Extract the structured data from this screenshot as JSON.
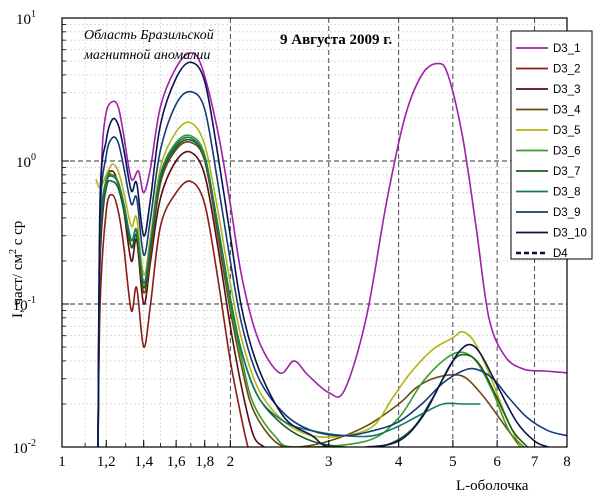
{
  "chart_data": {
    "type": "line",
    "title": "9  Августа 2009 г.",
    "region_label_line1": "Область Бразильской",
    "region_label_line2": "магнитной аномалии",
    "xlabel": "L-оболочка",
    "ylabel": "I, част/ см",
    "ylabel_sup": "2",
    "ylabel_tail": " с ср",
    "x_scale": "log",
    "y_scale": "log",
    "xlim": [
      1,
      8
    ],
    "ylim": [
      0.01,
      10
    ],
    "x_ticks": [
      {
        "value": 1,
        "label": "1"
      },
      {
        "value": 1.2,
        "label": "1,2"
      },
      {
        "value": 1.4,
        "label": "1,4"
      },
      {
        "value": 1.6,
        "label": "1,6"
      },
      {
        "value": 1.8,
        "label": "1,8"
      },
      {
        "value": 2,
        "label": "2"
      },
      {
        "value": 3,
        "label": "3"
      },
      {
        "value": 4,
        "label": "4"
      },
      {
        "value": 5,
        "label": "5"
      },
      {
        "value": 6,
        "label": "6"
      },
      {
        "value": 7,
        "label": "7"
      },
      {
        "value": 8,
        "label": "8"
      }
    ],
    "y_ticks": [
      {
        "value": 0.01,
        "base": "10",
        "exp": "-2"
      },
      {
        "value": 0.1,
        "base": "10",
        "exp": "-1"
      },
      {
        "value": 1,
        "base": "10",
        "exp": "0"
      },
      {
        "value": 10,
        "base": "10",
        "exp": "1"
      }
    ],
    "dashed_x_lines": [
      2,
      3,
      4,
      5,
      6,
      7
    ],
    "dashed_y_lines": [
      0.1,
      1
    ],
    "grid": true,
    "legend_position": "top-right",
    "series": [
      {
        "name": "D3_1",
        "color": "#a020a8",
        "dash": false,
        "points": [
          [
            1.16,
            0.01
          ],
          [
            1.17,
            0.3
          ],
          [
            1.18,
            1.2
          ],
          [
            1.2,
            2.2
          ],
          [
            1.23,
            2.6
          ],
          [
            1.26,
            2.4
          ],
          [
            1.29,
            1.5
          ],
          [
            1.33,
            0.75
          ],
          [
            1.37,
            0.85
          ],
          [
            1.4,
            0.6
          ],
          [
            1.44,
            0.9
          ],
          [
            1.5,
            2.4
          ],
          [
            1.6,
            4.5
          ],
          [
            1.7,
            5.7
          ],
          [
            1.78,
            4.5
          ],
          [
            1.9,
            1.6
          ],
          [
            2.0,
            0.5
          ],
          [
            2.1,
            0.15
          ],
          [
            2.25,
            0.055
          ],
          [
            2.45,
            0.033
          ],
          [
            2.6,
            0.04
          ],
          [
            2.75,
            0.032
          ],
          [
            3.0,
            0.024
          ],
          [
            3.2,
            0.025
          ],
          [
            3.5,
            0.08
          ],
          [
            3.8,
            0.5
          ],
          [
            4.1,
            2.0
          ],
          [
            4.4,
            4.0
          ],
          [
            4.7,
            4.8
          ],
          [
            4.9,
            4.0
          ],
          [
            5.2,
            1.5
          ],
          [
            5.5,
            0.35
          ],
          [
            5.8,
            0.08
          ],
          [
            6.2,
            0.043
          ],
          [
            6.7,
            0.035
          ],
          [
            7.3,
            0.034
          ],
          [
            8.0,
            0.033
          ]
        ]
      },
      {
        "name": "D3_2",
        "color": "#8b1a1a",
        "dash": false,
        "points": [
          [
            1.16,
            0.01
          ],
          [
            1.17,
            0.1
          ],
          [
            1.2,
            0.45
          ],
          [
            1.23,
            0.58
          ],
          [
            1.26,
            0.45
          ],
          [
            1.29,
            0.25
          ],
          [
            1.33,
            0.09
          ],
          [
            1.36,
            0.13
          ],
          [
            1.4,
            0.05
          ],
          [
            1.44,
            0.1
          ],
          [
            1.5,
            0.35
          ],
          [
            1.6,
            0.6
          ],
          [
            1.7,
            0.72
          ],
          [
            1.8,
            0.5
          ],
          [
            1.9,
            0.15
          ],
          [
            2.0,
            0.04
          ],
          [
            2.1,
            0.015
          ],
          [
            2.15,
            0.01
          ]
        ]
      },
      {
        "name": "D3_3",
        "color": "#5c0a14",
        "dash": false,
        "points": [
          [
            1.16,
            0.01
          ],
          [
            1.17,
            0.2
          ],
          [
            1.2,
            0.7
          ],
          [
            1.23,
            0.85
          ],
          [
            1.26,
            0.7
          ],
          [
            1.29,
            0.45
          ],
          [
            1.33,
            0.2
          ],
          [
            1.36,
            0.28
          ],
          [
            1.4,
            0.1
          ],
          [
            1.44,
            0.2
          ],
          [
            1.5,
            0.55
          ],
          [
            1.6,
            1.0
          ],
          [
            1.7,
            1.15
          ],
          [
            1.8,
            0.8
          ],
          [
            1.9,
            0.25
          ],
          [
            2.0,
            0.07
          ],
          [
            2.1,
            0.025
          ],
          [
            2.2,
            0.012
          ],
          [
            2.3,
            0.01
          ]
        ]
      },
      {
        "name": "D3_4",
        "color": "#6b4a10",
        "dash": false,
        "points": [
          [
            1.16,
            0.01
          ],
          [
            1.17,
            0.25
          ],
          [
            1.2,
            0.7
          ],
          [
            1.23,
            0.8
          ],
          [
            1.26,
            0.7
          ],
          [
            1.29,
            0.5
          ],
          [
            1.33,
            0.25
          ],
          [
            1.36,
            0.3
          ],
          [
            1.4,
            0.12
          ],
          [
            1.44,
            0.22
          ],
          [
            1.5,
            0.7
          ],
          [
            1.6,
            1.2
          ],
          [
            1.7,
            1.35
          ],
          [
            1.8,
            1.0
          ],
          [
            1.9,
            0.3
          ],
          [
            2.0,
            0.09
          ],
          [
            2.1,
            0.035
          ],
          [
            2.2,
            0.018
          ],
          [
            2.4,
            0.011
          ],
          [
            2.6,
            0.01
          ],
          [
            3.0,
            0.011
          ],
          [
            3.5,
            0.014
          ],
          [
            4.0,
            0.02
          ],
          [
            4.3,
            0.026
          ],
          [
            4.6,
            0.03
          ],
          [
            5.0,
            0.032
          ],
          [
            5.3,
            0.03
          ],
          [
            5.7,
            0.022
          ],
          [
            6.2,
            0.014
          ],
          [
            6.6,
            0.01
          ]
        ]
      },
      {
        "name": "D3_5",
        "color": "#b4b414",
        "dash": false,
        "points": [
          [
            1.15,
            0.75
          ],
          [
            1.17,
            0.65
          ],
          [
            1.2,
            0.8
          ],
          [
            1.23,
            0.95
          ],
          [
            1.26,
            0.85
          ],
          [
            1.29,
            0.6
          ],
          [
            1.33,
            0.35
          ],
          [
            1.36,
            0.4
          ],
          [
            1.4,
            0.16
          ],
          [
            1.44,
            0.3
          ],
          [
            1.5,
            0.9
          ],
          [
            1.6,
            1.6
          ],
          [
            1.7,
            1.85
          ],
          [
            1.8,
            1.3
          ],
          [
            1.9,
            0.45
          ],
          [
            2.0,
            0.14
          ],
          [
            2.1,
            0.055
          ],
          [
            2.25,
            0.025
          ],
          [
            2.5,
            0.015
          ],
          [
            2.8,
            0.012
          ],
          [
            3.2,
            0.012
          ],
          [
            3.6,
            0.014
          ],
          [
            3.9,
            0.022
          ],
          [
            4.2,
            0.033
          ],
          [
            4.6,
            0.048
          ],
          [
            5.0,
            0.058
          ],
          [
            5.2,
            0.064
          ],
          [
            5.45,
            0.055
          ],
          [
            5.8,
            0.033
          ],
          [
            6.2,
            0.017
          ],
          [
            6.6,
            0.01
          ]
        ]
      },
      {
        "name": "D3_6",
        "color": "#3c9b2a",
        "dash": false,
        "points": [
          [
            1.16,
            0.01
          ],
          [
            1.17,
            0.3
          ],
          [
            1.2,
            0.75
          ],
          [
            1.23,
            0.8
          ],
          [
            1.26,
            0.72
          ],
          [
            1.29,
            0.5
          ],
          [
            1.33,
            0.28
          ],
          [
            1.36,
            0.33
          ],
          [
            1.4,
            0.14
          ],
          [
            1.44,
            0.26
          ],
          [
            1.5,
            0.8
          ],
          [
            1.6,
            1.35
          ],
          [
            1.7,
            1.5
          ],
          [
            1.8,
            1.1
          ],
          [
            1.9,
            0.35
          ],
          [
            2.0,
            0.1
          ],
          [
            2.1,
            0.04
          ],
          [
            2.2,
            0.02
          ],
          [
            2.4,
            0.012
          ],
          [
            2.6,
            0.01
          ],
          [
            3.5,
            0.011
          ],
          [
            4.0,
            0.016
          ],
          [
            4.4,
            0.028
          ],
          [
            4.8,
            0.04
          ],
          [
            5.15,
            0.046
          ],
          [
            5.5,
            0.04
          ],
          [
            5.9,
            0.024
          ],
          [
            6.3,
            0.013
          ],
          [
            6.7,
            0.01
          ]
        ]
      },
      {
        "name": "D3_7",
        "color": "#1e5a1e",
        "dash": false,
        "points": [
          [
            1.16,
            0.01
          ],
          [
            1.17,
            0.25
          ],
          [
            1.2,
            0.65
          ],
          [
            1.23,
            0.72
          ],
          [
            1.26,
            0.65
          ],
          [
            1.29,
            0.45
          ],
          [
            1.33,
            0.25
          ],
          [
            1.36,
            0.3
          ],
          [
            1.4,
            0.13
          ],
          [
            1.44,
            0.25
          ],
          [
            1.5,
            0.75
          ],
          [
            1.6,
            1.25
          ],
          [
            1.7,
            1.4
          ],
          [
            1.8,
            1.05
          ],
          [
            1.9,
            0.35
          ],
          [
            2.0,
            0.11
          ],
          [
            2.1,
            0.045
          ],
          [
            2.25,
            0.022
          ],
          [
            2.5,
            0.014
          ],
          [
            2.8,
            0.011
          ],
          [
            3.2,
            0.01
          ],
          [
            3.7,
            0.01
          ],
          [
            4.2,
            0.013
          ],
          [
            4.6,
            0.022
          ],
          [
            5.0,
            0.04
          ],
          [
            5.3,
            0.044
          ],
          [
            5.6,
            0.037
          ],
          [
            6.0,
            0.022
          ],
          [
            6.4,
            0.013
          ],
          [
            6.8,
            0.01
          ]
        ]
      },
      {
        "name": "D3_8",
        "color": "#147864",
        "dash": false,
        "points": [
          [
            1.16,
            0.01
          ],
          [
            1.17,
            0.3
          ],
          [
            1.2,
            0.7
          ],
          [
            1.23,
            0.78
          ],
          [
            1.26,
            0.7
          ],
          [
            1.29,
            0.5
          ],
          [
            1.33,
            0.28
          ],
          [
            1.36,
            0.32
          ],
          [
            1.4,
            0.14
          ],
          [
            1.44,
            0.27
          ],
          [
            1.5,
            0.8
          ],
          [
            1.6,
            1.3
          ],
          [
            1.7,
            1.45
          ],
          [
            1.8,
            1.05
          ],
          [
            1.9,
            0.35
          ],
          [
            2.0,
            0.11
          ],
          [
            2.1,
            0.045
          ],
          [
            2.25,
            0.022
          ],
          [
            2.5,
            0.015
          ],
          [
            2.8,
            0.013
          ],
          [
            3.2,
            0.012
          ],
          [
            3.6,
            0.012
          ],
          [
            4.0,
            0.014
          ],
          [
            4.4,
            0.017
          ],
          [
            4.8,
            0.02
          ],
          [
            5.2,
            0.02
          ],
          [
            5.6,
            0.02
          ]
        ]
      },
      {
        "name": "D3_9",
        "color": "#143c78",
        "dash": false,
        "points": [
          [
            1.16,
            0.01
          ],
          [
            1.17,
            0.4
          ],
          [
            1.2,
            1.1
          ],
          [
            1.23,
            1.45
          ],
          [
            1.26,
            1.35
          ],
          [
            1.29,
            0.9
          ],
          [
            1.33,
            0.5
          ],
          [
            1.36,
            0.55
          ],
          [
            1.4,
            0.22
          ],
          [
            1.44,
            0.4
          ],
          [
            1.5,
            1.2
          ],
          [
            1.6,
            2.5
          ],
          [
            1.7,
            3.05
          ],
          [
            1.8,
            2.3
          ],
          [
            1.9,
            0.7
          ],
          [
            2.0,
            0.2
          ],
          [
            2.1,
            0.07
          ],
          [
            2.25,
            0.03
          ],
          [
            2.5,
            0.017
          ],
          [
            2.8,
            0.013
          ],
          [
            3.2,
            0.012
          ],
          [
            3.6,
            0.013
          ],
          [
            4.0,
            0.015
          ],
          [
            4.4,
            0.02
          ],
          [
            4.8,
            0.028
          ],
          [
            5.2,
            0.034
          ],
          [
            5.5,
            0.035
          ],
          [
            5.9,
            0.03
          ],
          [
            6.3,
            0.022
          ],
          [
            6.8,
            0.016
          ],
          [
            7.4,
            0.013
          ],
          [
            8.0,
            0.012
          ]
        ]
      },
      {
        "name": "D3_10",
        "color": "#0a1450",
        "dash": false,
        "points": [
          [
            1.16,
            0.01
          ],
          [
            1.17,
            0.55
          ],
          [
            1.2,
            1.4
          ],
          [
            1.23,
            1.95
          ],
          [
            1.26,
            1.8
          ],
          [
            1.29,
            1.2
          ],
          [
            1.33,
            0.62
          ],
          [
            1.36,
            0.7
          ],
          [
            1.4,
            0.3
          ],
          [
            1.44,
            0.55
          ],
          [
            1.5,
            1.8
          ],
          [
            1.6,
            3.8
          ],
          [
            1.7,
            4.9
          ],
          [
            1.8,
            3.6
          ],
          [
            1.9,
            1.1
          ],
          [
            2.0,
            0.3
          ],
          [
            2.1,
            0.09
          ],
          [
            2.25,
            0.035
          ],
          [
            2.5,
            0.016
          ],
          [
            2.8,
            0.012
          ],
          [
            3.0,
            0.01
          ],
          [
            3.5,
            0.01
          ],
          [
            4.0,
            0.011
          ],
          [
            4.4,
            0.016
          ],
          [
            4.8,
            0.03
          ],
          [
            5.1,
            0.045
          ],
          [
            5.35,
            0.052
          ],
          [
            5.6,
            0.045
          ],
          [
            6.0,
            0.027
          ],
          [
            6.5,
            0.015
          ],
          [
            7.0,
            0.011
          ],
          [
            7.4,
            0.01
          ]
        ]
      },
      {
        "name": "D4",
        "color": "#0a0a50",
        "dash": true,
        "points": []
      }
    ]
  }
}
